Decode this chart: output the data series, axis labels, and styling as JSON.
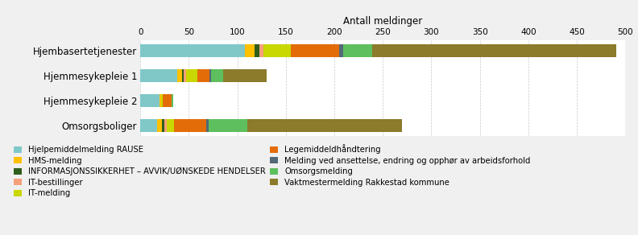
{
  "categories": [
    "Hjembasertetjenester",
    "Hjemmesykepleie 1",
    "Hjemmesykepleie 2",
    "Omsorgsboliger"
  ],
  "series": [
    {
      "label": "Hjelpemiddelmelding RAUSE",
      "color": "#80C8C8",
      "values": [
        108,
        38,
        20,
        17
      ]
    },
    {
      "label": "HMS-melding",
      "color": "#FFC000",
      "values": [
        10,
        5,
        1,
        5
      ]
    },
    {
      "label": "INFORMASJONSSIKKERHET – AVVIK/UØNSKEDE HENDELSER",
      "color": "#2E5E1A",
      "values": [
        5,
        2,
        0,
        3
      ]
    },
    {
      "label": "IT-bestillinger",
      "color": "#F4A07A",
      "values": [
        4,
        2,
        0,
        2
      ]
    },
    {
      "label": "IT-melding",
      "color": "#C8D800",
      "values": [
        28,
        12,
        2,
        8
      ]
    },
    {
      "label": "Legemiddeldhåndtering",
      "color": "#E36C09",
      "values": [
        50,
        12,
        9,
        33
      ]
    },
    {
      "label": "Melding ved ansettelse, endring og opphør av arbeidsforhold",
      "color": "#536878",
      "values": [
        4,
        2,
        0,
        2
      ]
    },
    {
      "label": "Omsorgsmelding",
      "color": "#5DBF5D",
      "values": [
        30,
        12,
        2,
        40
      ]
    },
    {
      "label": "Vaktmestermelding Rakkestad kommune",
      "color": "#8B7B2A",
      "values": [
        252,
        45,
        0,
        160
      ]
    }
  ],
  "xlim": [
    0,
    500
  ],
  "xticks": [
    0,
    50,
    100,
    150,
    200,
    250,
    300,
    350,
    400,
    450,
    500
  ],
  "xlabel": "Antall meldinger",
  "bg_color": "#F0F0F0",
  "plot_bg": "#FFFFFF",
  "legend_fontsize": 7.2,
  "bar_height": 0.52,
  "figsize": [
    7.92,
    2.92
  ],
  "dpi": 100,
  "legend_order": [
    0,
    1,
    2,
    3,
    4,
    5,
    6,
    7,
    8
  ]
}
